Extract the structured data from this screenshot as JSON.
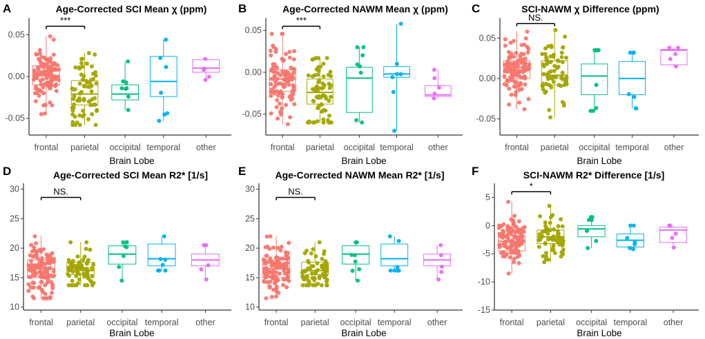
{
  "figure": {
    "x_axis_title": "Brain Lobe",
    "categories": [
      "frontal",
      "parietal",
      "occipital",
      "temporal",
      "other"
    ],
    "category_colors": {
      "frontal": "#F8766D",
      "parietal": "#A3A500",
      "occipital": "#00BF7D",
      "temporal": "#00B0F6",
      "other": "#E76BF3"
    }
  },
  "chart_data": [
    {
      "type": "box",
      "panel": "A",
      "title": "Age-Corrected SCI Mean χ (ppm)",
      "xlabel": "",
      "ylabel": "",
      "ylim": [
        -0.07,
        0.07
      ],
      "yticks": [
        -0.05,
        0.0,
        0.05
      ],
      "ytick_labels": [
        "-0.05",
        "0.00",
        "0.05"
      ],
      "boxes": [
        {
          "category": "frontal",
          "q1": -0.01,
          "median": 0.001,
          "q3": 0.013,
          "whisker_low": -0.045,
          "whisker_high": 0.048
        },
        {
          "category": "parietal",
          "q1": -0.034,
          "median": -0.021,
          "q3": -0.005,
          "whisker_low": -0.058,
          "whisker_high": 0.028
        },
        {
          "category": "occipital",
          "q1": -0.028,
          "median": -0.021,
          "q3": -0.01,
          "whisker_low": -0.04,
          "whisker_high": 0.018
        },
        {
          "category": "temporal",
          "q1": -0.024,
          "median": -0.006,
          "q3": 0.024,
          "whisker_low": -0.053,
          "whisker_high": 0.044
        },
        {
          "category": "other",
          "q1": 0.005,
          "median": 0.01,
          "q3": 0.02,
          "whisker_low": -0.004,
          "whisker_high": 0.021
        }
      ],
      "significance": {
        "label": "***",
        "from": "frontal",
        "to": "parietal",
        "y": 0.06
      }
    },
    {
      "type": "box",
      "panel": "B",
      "title": "Age-Corrected NAWM Mean χ (ppm)",
      "xlabel": "",
      "ylabel": "",
      "ylim": [
        -0.075,
        0.065
      ],
      "yticks": [
        -0.05,
        0.0,
        0.05
      ],
      "ytick_labels": [
        "-0.05",
        "0.00",
        "0.05"
      ],
      "boxes": [
        {
          "category": "frontal",
          "q1": -0.023,
          "median": -0.008,
          "q3": 0.003,
          "whisker_low": -0.062,
          "whisker_high": 0.046
        },
        {
          "category": "parietal",
          "q1": -0.038,
          "median": -0.024,
          "q3": -0.008,
          "whisker_low": -0.06,
          "whisker_high": 0.017
        },
        {
          "category": "occipital",
          "q1": -0.048,
          "median": -0.007,
          "q3": 0.006,
          "whisker_low": -0.06,
          "whisker_high": 0.03
        },
        {
          "category": "temporal",
          "q1": -0.006,
          "median": -0.002,
          "q3": 0.007,
          "whisker_low": -0.07,
          "whisker_high": 0.058
        },
        {
          "category": "other",
          "q1": -0.029,
          "median": -0.027,
          "q3": -0.016,
          "whisker_low": -0.031,
          "whisker_high": 0.003
        }
      ],
      "significance": {
        "label": "***",
        "from": "frontal",
        "to": "parietal",
        "y": 0.055
      }
    },
    {
      "type": "box",
      "panel": "C",
      "title": "SCI-NAWM χ Difference (ppm)",
      "xlabel": "",
      "ylabel": "",
      "ylim": [
        -0.07,
        0.075
      ],
      "yticks": [
        -0.05,
        0.0,
        0.05
      ],
      "ytick_labels": [
        "-0.05",
        "0.00",
        "0.05"
      ],
      "boxes": [
        {
          "category": "frontal",
          "q1": 0.0,
          "median": 0.01,
          "q3": 0.022,
          "whisker_low": -0.038,
          "whisker_high": 0.058
        },
        {
          "category": "parietal",
          "q1": -0.008,
          "median": 0.004,
          "q3": 0.022,
          "whisker_low": -0.048,
          "whisker_high": 0.06
        },
        {
          "category": "occipital",
          "q1": -0.02,
          "median": 0.003,
          "q3": 0.018,
          "whisker_low": -0.04,
          "whisker_high": 0.035
        },
        {
          "category": "temporal",
          "q1": -0.02,
          "median": 0.0,
          "q3": 0.021,
          "whisker_low": -0.037,
          "whisker_high": 0.032
        },
        {
          "category": "other",
          "q1": 0.017,
          "median": 0.035,
          "q3": 0.036,
          "whisker_low": 0.015,
          "whisker_high": 0.038
        }
      ],
      "significance": {
        "label": "NS.",
        "from": "frontal",
        "to": "parietal",
        "y": 0.068
      }
    },
    {
      "type": "box",
      "panel": "D",
      "title": "Age-Corrected SCI Mean R2* [1/s]",
      "xlabel": "",
      "ylabel": "",
      "ylim": [
        9.5,
        31
      ],
      "yticks": [
        10,
        15,
        20,
        25,
        30
      ],
      "ytick_labels": [
        "10",
        "15",
        "20",
        "25",
        "30"
      ],
      "boxes": [
        {
          "category": "frontal",
          "q1": 15.0,
          "median": 16.5,
          "q3": 18.0,
          "whisker_low": 11.5,
          "whisker_high": 22.0
        },
        {
          "category": "parietal",
          "q1": 15.5,
          "median": 16.2,
          "q3": 17.6,
          "whisker_low": 13.7,
          "whisker_high": 21.0
        },
        {
          "category": "occipital",
          "q1": 17.3,
          "median": 19.0,
          "q3": 20.4,
          "whisker_low": 14.5,
          "whisker_high": 21.0
        },
        {
          "category": "temporal",
          "q1": 17.0,
          "median": 18.2,
          "q3": 20.7,
          "whisker_low": 16.2,
          "whisker_high": 22.0
        },
        {
          "category": "other",
          "q1": 17.0,
          "median": 18.0,
          "q3": 19.0,
          "whisker_low": 14.7,
          "whisker_high": 20.5
        }
      ],
      "significance": {
        "label": "NS.",
        "from": "frontal",
        "to": "parietal",
        "y": 28.6
      }
    },
    {
      "type": "box",
      "panel": "E",
      "title": "Age-Corrected NAWM Mean R2* [1/s]",
      "xlabel": "",
      "ylabel": "",
      "ylim": [
        9.5,
        31
      ],
      "yticks": [
        10,
        15,
        20,
        25,
        30
      ],
      "ytick_labels": [
        "10",
        "15",
        "20",
        "25",
        "30"
      ],
      "boxes": [
        {
          "category": "frontal",
          "q1": 15.0,
          "median": 16.5,
          "q3": 18.0,
          "whisker_low": 11.5,
          "whisker_high": 22.0
        },
        {
          "category": "parietal",
          "q1": 15.5,
          "median": 16.2,
          "q3": 17.6,
          "whisker_low": 13.7,
          "whisker_high": 21.0
        },
        {
          "category": "occipital",
          "q1": 17.3,
          "median": 19.0,
          "q3": 20.4,
          "whisker_low": 14.5,
          "whisker_high": 21.0
        },
        {
          "category": "temporal",
          "q1": 17.0,
          "median": 18.2,
          "q3": 20.7,
          "whisker_low": 16.2,
          "whisker_high": 22.0
        },
        {
          "category": "other",
          "q1": 17.0,
          "median": 18.0,
          "q3": 19.0,
          "whisker_low": 14.7,
          "whisker_high": 20.5
        }
      ],
      "significance": {
        "label": "NS.",
        "from": "frontal",
        "to": "parietal",
        "y": 28.6
      }
    },
    {
      "type": "box",
      "panel": "F",
      "title": "SCI-NAWM R2* Difference [1/s]",
      "xlabel": "",
      "ylabel": "",
      "ylim": [
        -15,
        7.5
      ],
      "yticks": [
        -15,
        -10,
        -5,
        0,
        5
      ],
      "ytick_labels": [
        "-15",
        "-10",
        "-5",
        "0",
        "5"
      ],
      "boxes": [
        {
          "category": "frontal",
          "q1": -4.5,
          "median": -2.8,
          "q3": -1.8,
          "whisker_low": -8.5,
          "whisker_high": 4.2
        },
        {
          "category": "parietal",
          "q1": -3.2,
          "median": -2.0,
          "q3": -0.8,
          "whisker_low": -6.5,
          "whisker_high": 3.5
        },
        {
          "category": "occipital",
          "q1": -2.0,
          "median": -0.6,
          "q3": 0.0,
          "whisker_low": -4.0,
          "whisker_high": 1.5
        },
        {
          "category": "temporal",
          "q1": -3.8,
          "median": -2.6,
          "q3": -1.5,
          "whisker_low": -4.2,
          "whisker_high": 0.0
        },
        {
          "category": "other",
          "q1": -3.0,
          "median": -0.8,
          "q3": -0.3,
          "whisker_low": -3.9,
          "whisker_high": 0.0
        }
      ],
      "significance": {
        "label": "*",
        "from": "frontal",
        "to": "parietal",
        "y": 6.0
      }
    }
  ]
}
